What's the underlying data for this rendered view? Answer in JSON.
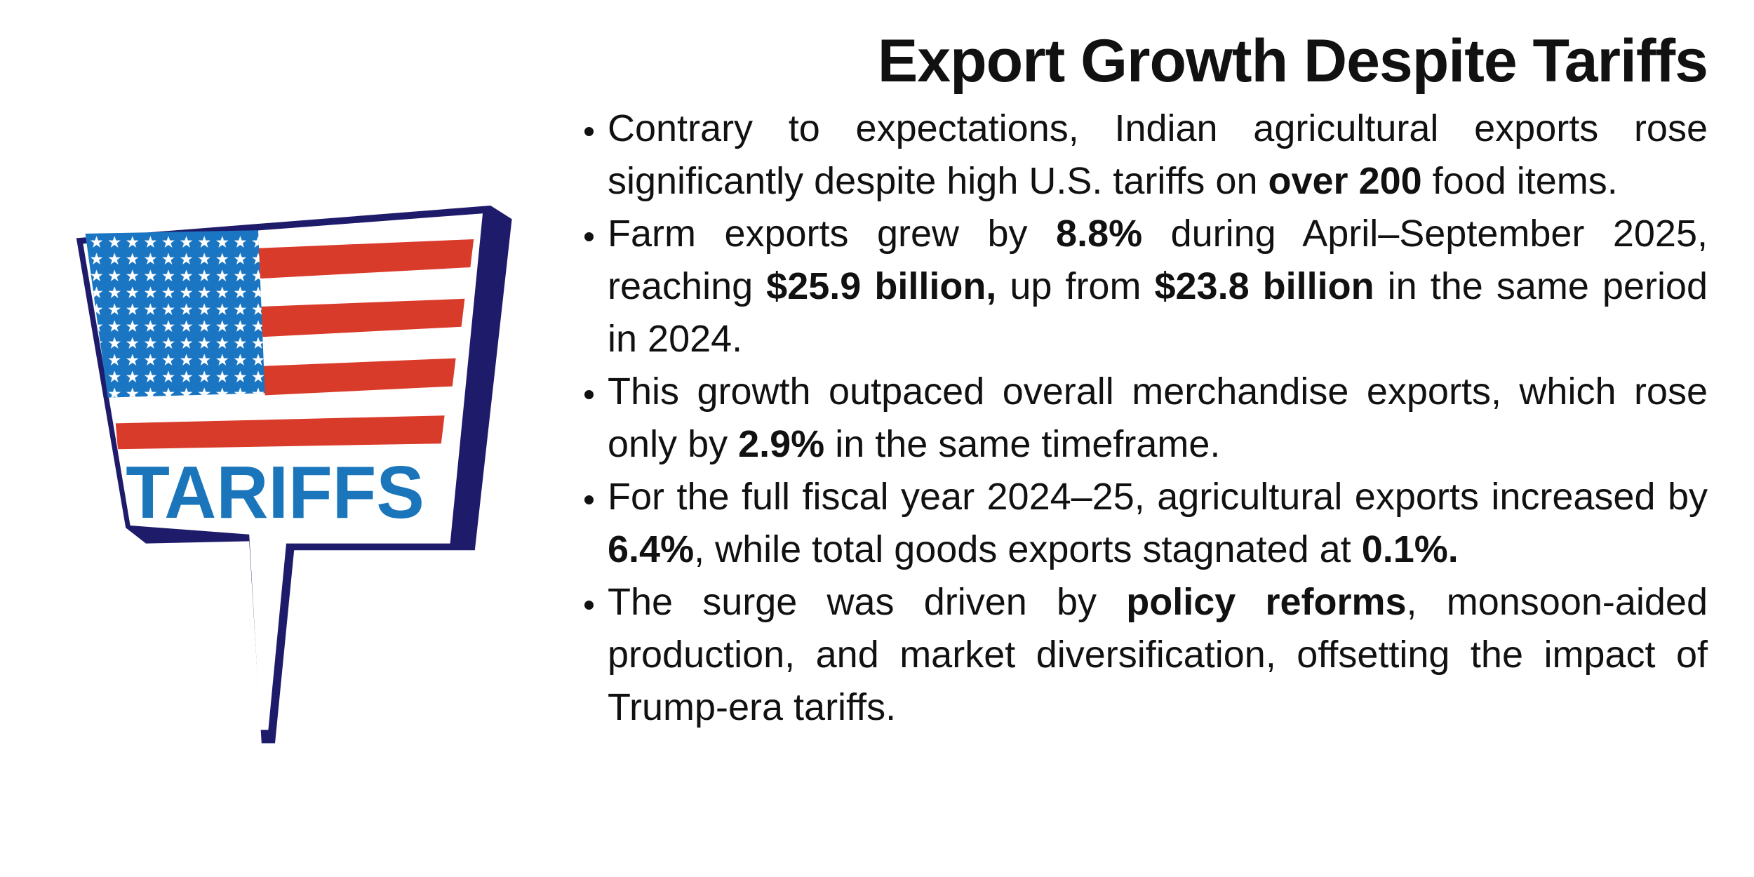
{
  "title": "Export Growth Despite Tariffs",
  "illustration": {
    "label": "TARIFFS"
  },
  "bullets": [
    [
      {
        "text": "Contrary to expectations, Indian agricultural exports rose significantly despite high U.S. tariffs on "
      },
      {
        "text": "over 200",
        "bold": true
      },
      {
        "text": " food items."
      }
    ],
    [
      {
        "text": "Farm exports grew by "
      },
      {
        "text": "8.8%",
        "bold": true
      },
      {
        "text": " during April–September 2025, reaching "
      },
      {
        "text": "$25.9 billion,",
        "bold": true
      },
      {
        "text": " up from "
      },
      {
        "text": "$23.8 billion",
        "bold": true
      },
      {
        "text": " in the same period in 2024."
      }
    ],
    [
      {
        "text": "This growth outpaced overall merchandise exports, which rose only by "
      },
      {
        "text": "2.9%",
        "bold": true
      },
      {
        "text": " in the same timeframe."
      }
    ],
    [
      {
        "text": "For the full fiscal year 2024–25, agricultural exports increased by "
      },
      {
        "text": "6.4%",
        "bold": true
      },
      {
        "text": ", while total goods exports stagnated at "
      },
      {
        "text": "0.1%.",
        "bold": true
      }
    ],
    [
      {
        "text": "The surge was driven by "
      },
      {
        "text": "policy reforms",
        "bold": true
      },
      {
        "text": ", monsoon-aided production, and market diversification, offsetting the impact of Trump-era tariffs."
      }
    ]
  ]
}
